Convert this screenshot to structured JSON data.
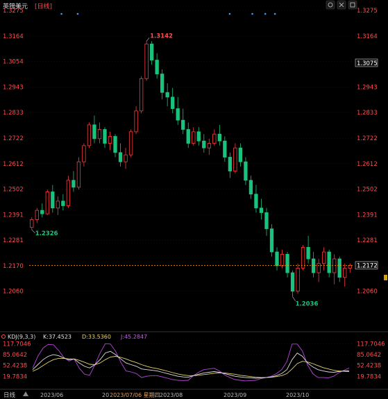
{
  "header": {
    "symbol_name": "英镑美元",
    "period_tag": "[日线]",
    "icons": [
      "gear-icon",
      "close-icon",
      "maximize-icon"
    ]
  },
  "colors": {
    "background": "#000000",
    "up": "#ff3b3b",
    "down": "#19c37d",
    "grid": "#2a2a2a",
    "price_label_left": "#ff4d4d",
    "price_label_right": "#ff4d4d",
    "current_price_line": "#ff9a00",
    "k_line": "#e0e0e0",
    "d_line": "#e8d46a",
    "j_line": "#b845d8",
    "high_label": "#ff4d4d",
    "low_label": "#19c37d"
  },
  "price_axis": {
    "ticks": [
      "1.3275",
      "1.3164",
      "1.3054",
      "1.2943",
      "1.2833",
      "1.2722",
      "1.2612",
      "1.2502",
      "1.2391",
      "1.2281",
      "1.2170",
      "1.2060"
    ],
    "right_ticks": [
      "1.3275",
      "1.3164",
      "1.3075",
      "1.2943",
      "1.2833",
      "1.2722",
      "1.2612",
      "1.2502",
      "1.2391",
      "1.2281",
      "1.2170",
      "1.2060"
    ],
    "boxed_right_label": "1.3075",
    "current_price": "1.2172",
    "ymax": 1.3275,
    "ymin": 1.2005
  },
  "annotations": {
    "high": "1.3142",
    "low_start": "1.2326",
    "low_end": "1.2036"
  },
  "kdj": {
    "title": "KDJ(9,3,3)",
    "k_label": "K:37.4523",
    "d_label": "D:33.5360",
    "j_label": "J:45.2847",
    "ticks": [
      "117.7046",
      "85.0642",
      "52.4238",
      "19.7834"
    ]
  },
  "x_axis": {
    "period_label": "日线",
    "labels": [
      "2023/06",
      "2023/07/06 星期四",
      "2023/08",
      "2023/09",
      "2023/10"
    ],
    "prefix_fragment": "20"
  },
  "chart_data": {
    "type": "candlestick",
    "series_name": "英镑美元",
    "ylim": [
      1.2005,
      1.3275
    ],
    "candles": [
      [
        1.2336,
        1.238,
        1.2326,
        1.237
      ],
      [
        1.237,
        1.242,
        1.2355,
        1.241
      ],
      [
        1.241,
        1.244,
        1.238,
        1.2395
      ],
      [
        1.2395,
        1.25,
        1.239,
        1.249
      ],
      [
        1.249,
        1.252,
        1.24,
        1.242
      ],
      [
        1.242,
        1.247,
        1.239,
        1.245
      ],
      [
        1.245,
        1.248,
        1.241,
        1.243
      ],
      [
        1.243,
        1.256,
        1.242,
        1.254
      ],
      [
        1.254,
        1.258,
        1.249,
        1.251
      ],
      [
        1.251,
        1.264,
        1.25,
        1.262
      ],
      [
        1.262,
        1.27,
        1.26,
        1.269
      ],
      [
        1.269,
        1.279,
        1.268,
        1.278
      ],
      [
        1.278,
        1.282,
        1.27,
        1.272
      ],
      [
        1.272,
        1.279,
        1.27,
        1.276
      ],
      [
        1.276,
        1.277,
        1.268,
        1.27
      ],
      [
        1.27,
        1.275,
        1.267,
        1.273
      ],
      [
        1.273,
        1.274,
        1.264,
        1.266
      ],
      [
        1.266,
        1.27,
        1.26,
        1.262
      ],
      [
        1.262,
        1.268,
        1.259,
        1.265
      ],
      [
        1.265,
        1.276,
        1.264,
        1.275
      ],
      [
        1.275,
        1.286,
        1.274,
        1.284
      ],
      [
        1.284,
        1.299,
        1.283,
        1.298
      ],
      [
        1.298,
        1.3142,
        1.297,
        1.313
      ],
      [
        1.313,
        1.3142,
        1.304,
        1.306
      ],
      [
        1.306,
        1.309,
        1.298,
        1.3
      ],
      [
        1.3,
        1.302,
        1.289,
        1.292
      ],
      [
        1.292,
        1.296,
        1.286,
        1.29
      ],
      [
        1.29,
        1.294,
        1.283,
        1.285
      ],
      [
        1.285,
        1.29,
        1.278,
        1.28
      ],
      [
        1.28,
        1.285,
        1.274,
        1.276
      ],
      [
        1.276,
        1.279,
        1.268,
        1.27
      ],
      [
        1.27,
        1.277,
        1.269,
        1.275
      ],
      [
        1.275,
        1.277,
        1.269,
        1.271
      ],
      [
        1.271,
        1.274,
        1.266,
        1.268
      ],
      [
        1.268,
        1.272,
        1.265,
        1.27
      ],
      [
        1.27,
        1.276,
        1.269,
        1.274
      ],
      [
        1.274,
        1.278,
        1.269,
        1.271
      ],
      [
        1.271,
        1.273,
        1.262,
        1.264
      ],
      [
        1.264,
        1.266,
        1.255,
        1.258
      ],
      [
        1.258,
        1.27,
        1.257,
        1.268
      ],
      [
        1.268,
        1.27,
        1.26,
        1.262
      ],
      [
        1.262,
        1.264,
        1.252,
        1.254
      ],
      [
        1.254,
        1.256,
        1.246,
        1.248
      ],
      [
        1.248,
        1.252,
        1.24,
        1.242
      ],
      [
        1.242,
        1.246,
        1.237,
        1.24
      ],
      [
        1.24,
        1.242,
        1.23,
        1.233
      ],
      [
        1.233,
        1.235,
        1.221,
        1.223
      ],
      [
        1.223,
        1.225,
        1.215,
        1.217
      ],
      [
        1.217,
        1.224,
        1.216,
        1.222
      ],
      [
        1.222,
        1.223,
        1.212,
        1.214
      ],
      [
        1.214,
        1.215,
        1.2036,
        1.206
      ],
      [
        1.206,
        1.218,
        1.205,
        1.216
      ],
      [
        1.216,
        1.226,
        1.215,
        1.225
      ],
      [
        1.225,
        1.23,
        1.218,
        1.22
      ],
      [
        1.22,
        1.223,
        1.212,
        1.214
      ],
      [
        1.214,
        1.22,
        1.21,
        1.218
      ],
      [
        1.218,
        1.225,
        1.215,
        1.223
      ],
      [
        1.223,
        1.224,
        1.212,
        1.214
      ],
      [
        1.214,
        1.222,
        1.209,
        1.22
      ],
      [
        1.22,
        1.221,
        1.21,
        1.212
      ],
      [
        1.212,
        1.218,
        1.208,
        1.216
      ],
      [
        1.216,
        1.218,
        1.214,
        1.2172
      ]
    ],
    "kdj": {
      "ylim": [
        10,
        125
      ],
      "K": [
        40,
        55,
        70,
        80,
        85,
        82,
        75,
        70,
        72,
        60,
        50,
        45,
        55,
        70,
        90,
        95,
        85,
        72,
        60,
        55,
        50,
        42,
        40,
        38,
        36,
        32,
        28,
        24,
        20,
        18,
        17,
        22,
        26,
        30,
        32,
        34,
        32,
        28,
        24,
        20,
        18,
        16,
        15,
        14,
        15,
        16,
        18,
        22,
        28,
        40,
        70,
        90,
        80,
        60,
        48,
        40,
        36,
        33,
        32,
        34,
        36,
        37
      ],
      "D": [
        35,
        42,
        52,
        62,
        70,
        74,
        74,
        72,
        72,
        68,
        62,
        56,
        55,
        60,
        70,
        78,
        80,
        77,
        72,
        66,
        61,
        55,
        50,
        46,
        43,
        39,
        35,
        31,
        27,
        24,
        22,
        22,
        23,
        25,
        27,
        29,
        30,
        30,
        28,
        26,
        23,
        21,
        19,
        17,
        16,
        16,
        17,
        19,
        22,
        28,
        42,
        58,
        65,
        63,
        58,
        52,
        46,
        42,
        38,
        36,
        35,
        34
      ],
      "J": [
        45,
        80,
        105,
        116,
        115,
        98,
        77,
        66,
        72,
        44,
        26,
        23,
        55,
        90,
        118,
        117,
        95,
        62,
        36,
        33,
        28,
        16,
        20,
        22,
        22,
        18,
        14,
        10,
        8,
        7,
        8,
        22,
        32,
        40,
        42,
        44,
        36,
        24,
        16,
        10,
        8,
        6,
        7,
        8,
        13,
        16,
        20,
        28,
        40,
        64,
        117,
        117,
        96,
        54,
        28,
        16,
        16,
        15,
        20,
        30,
        38,
        45
      ]
    }
  }
}
